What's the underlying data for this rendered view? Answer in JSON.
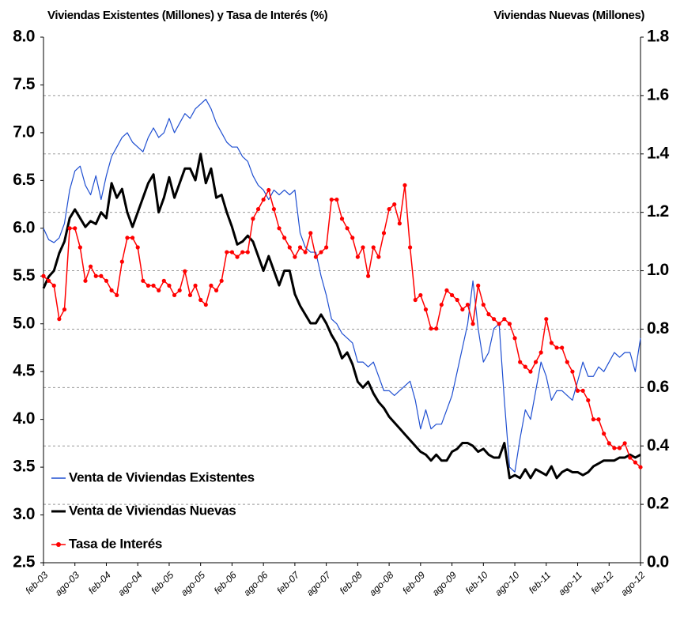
{
  "chart_data": {
    "type": "line",
    "y_label": "Viviendas Existentes (Millones) y Tasa de Interés (%)",
    "y2_label": "Viviendas Nuevas (Millones)",
    "categories": [
      "feb-03",
      null,
      null,
      null,
      null,
      null,
      "ago-03",
      null,
      null,
      null,
      null,
      null,
      "feb-04",
      null,
      null,
      null,
      null,
      null,
      "ago-04",
      null,
      null,
      null,
      null,
      null,
      "feb-05",
      null,
      null,
      null,
      null,
      null,
      "ago-05",
      null,
      null,
      null,
      null,
      null,
      "feb-06",
      null,
      null,
      null,
      null,
      null,
      "ago-06",
      null,
      null,
      null,
      null,
      null,
      "feb-07",
      null,
      null,
      null,
      null,
      null,
      "ago-07",
      null,
      null,
      null,
      null,
      null,
      "feb-08",
      null,
      null,
      null,
      null,
      null,
      "ago-08",
      null,
      null,
      null,
      null,
      null,
      "feb-09",
      null,
      null,
      null,
      null,
      null,
      "ago-09",
      null,
      null,
      null,
      null,
      null,
      "feb-10",
      null,
      null,
      null,
      null,
      null,
      "ago-10",
      null,
      null,
      null,
      null,
      null,
      "feb-11",
      null,
      null,
      null,
      null,
      null,
      "ago-11",
      null,
      null,
      null,
      null,
      null,
      "feb-12",
      null,
      null,
      null,
      null,
      null,
      "ago-12"
    ],
    "ylim": [
      2.5,
      8
    ],
    "yticks": [
      2.5,
      {
        "value": 3,
        "label": "3.0"
      },
      3.5,
      {
        "value": 4,
        "label": "4.0"
      },
      4.5,
      {
        "value": 5,
        "label": "5.0"
      },
      5.5,
      {
        "value": 6,
        "label": "6.0"
      },
      6.5,
      {
        "value": 7,
        "label": "7.0"
      },
      7.5,
      {
        "value": 8,
        "label": "8.0"
      }
    ],
    "y2lim": [
      0,
      1.8
    ],
    "y2ticks": [
      {
        "value": 0,
        "label": "0.0"
      },
      0.2,
      0.4,
      0.6,
      0.8,
      {
        "value": 1,
        "label": "1.0"
      },
      1.2,
      1.4,
      1.6,
      1.8
    ],
    "grid": "y2",
    "series": [
      {
        "name": "Venta de Viviendas Existentes",
        "color": "#1f4fd1",
        "axis": "y",
        "values": [
          6.0,
          5.88,
          5.85,
          5.9,
          6.05,
          6.4,
          6.6,
          6.65,
          6.45,
          6.35,
          6.55,
          6.3,
          6.55,
          6.75,
          6.85,
          6.95,
          7.0,
          6.9,
          6.85,
          6.8,
          6.95,
          7.05,
          6.95,
          7.0,
          7.15,
          7.0,
          7.1,
          7.2,
          7.15,
          7.25,
          7.3,
          7.35,
          7.25,
          7.1,
          7.0,
          6.9,
          6.85,
          6.85,
          6.75,
          6.7,
          6.55,
          6.45,
          6.4,
          6.3,
          6.4,
          6.35,
          6.4,
          6.35,
          6.4,
          5.95,
          5.8,
          5.75,
          5.75,
          5.5,
          5.3,
          5.05,
          5.0,
          4.9,
          4.85,
          4.8,
          4.6,
          4.6,
          4.55,
          4.6,
          4.45,
          4.3,
          4.3,
          4.25,
          4.3,
          4.35,
          4.4,
          4.2,
          3.9,
          4.1,
          3.9,
          3.95,
          3.95,
          4.1,
          4.25,
          4.5,
          4.75,
          5.0,
          5.45,
          4.95,
          4.6,
          4.7,
          4.95,
          5.0,
          4.2,
          3.5,
          3.45,
          3.8,
          4.1,
          4.0,
          4.3,
          4.6,
          4.45,
          4.2,
          4.3,
          4.3,
          4.25,
          4.2,
          4.4,
          4.6,
          4.45,
          4.45,
          4.55,
          4.5,
          4.6,
          4.7,
          4.65,
          4.7,
          4.7,
          4.5,
          4.85
        ]
      },
      {
        "name": "Venta de Viviendas Nuevas",
        "color": "#000000",
        "axis": "y2",
        "values": [
          0.94,
          0.98,
          1.0,
          1.06,
          1.1,
          1.18,
          1.21,
          1.18,
          1.15,
          1.17,
          1.16,
          1.2,
          1.18,
          1.3,
          1.25,
          1.28,
          1.2,
          1.15,
          1.2,
          1.25,
          1.3,
          1.33,
          1.2,
          1.25,
          1.32,
          1.25,
          1.3,
          1.35,
          1.35,
          1.31,
          1.4,
          1.3,
          1.35,
          1.25,
          1.26,
          1.2,
          1.15,
          1.09,
          1.1,
          1.12,
          1.1,
          1.05,
          1.0,
          1.05,
          1.0,
          0.95,
          1.0,
          1.0,
          0.92,
          0.88,
          0.85,
          0.82,
          0.82,
          0.85,
          0.82,
          0.78,
          0.75,
          0.7,
          0.72,
          0.68,
          0.62,
          0.6,
          0.62,
          0.58,
          0.55,
          0.53,
          0.5,
          0.48,
          0.46,
          0.44,
          0.42,
          0.4,
          0.38,
          0.37,
          0.35,
          0.37,
          0.35,
          0.35,
          0.38,
          0.39,
          0.41,
          0.41,
          0.4,
          0.38,
          0.39,
          0.37,
          0.36,
          0.36,
          0.41,
          0.29,
          0.3,
          0.29,
          0.32,
          0.29,
          0.32,
          0.31,
          0.3,
          0.33,
          0.29,
          0.31,
          0.32,
          0.31,
          0.31,
          0.3,
          0.31,
          0.33,
          0.34,
          0.35,
          0.35,
          0.35,
          0.36,
          0.36,
          0.37,
          0.36,
          0.37
        ]
      },
      {
        "name": "Tasa de Interés",
        "color": "#ff0000",
        "axis": "y",
        "marker": "circle",
        "values": [
          5.5,
          5.45,
          5.4,
          5.05,
          5.15,
          6.0,
          6.0,
          5.8,
          5.45,
          5.6,
          5.5,
          5.5,
          5.45,
          5.35,
          5.3,
          5.65,
          5.9,
          5.9,
          5.8,
          5.45,
          5.4,
          5.4,
          5.35,
          5.45,
          5.4,
          5.3,
          5.35,
          5.55,
          5.3,
          5.4,
          5.25,
          5.2,
          5.4,
          5.35,
          5.45,
          5.75,
          5.75,
          5.7,
          5.75,
          5.75,
          6.1,
          6.2,
          6.3,
          6.4,
          6.2,
          6.0,
          5.9,
          5.8,
          5.7,
          5.8,
          5.75,
          5.95,
          5.7,
          5.75,
          5.8,
          6.3,
          6.3,
          6.1,
          6.0,
          5.9,
          5.7,
          5.8,
          5.5,
          5.8,
          5.7,
          5.95,
          6.2,
          6.25,
          6.05,
          6.45,
          5.8,
          5.25,
          5.3,
          5.15,
          4.95,
          4.95,
          5.2,
          5.35,
          5.3,
          5.25,
          5.15,
          5.2,
          5.0,
          5.4,
          5.2,
          5.1,
          5.05,
          5.0,
          5.05,
          5.0,
          4.85,
          4.6,
          4.55,
          4.5,
          4.6,
          4.7,
          5.05,
          4.8,
          4.75,
          4.75,
          4.6,
          4.5,
          4.3,
          4.3,
          4.2,
          4.0,
          4.0,
          3.85,
          3.75,
          3.7,
          3.7,
          3.75,
          3.6,
          3.55,
          3.5
        ]
      }
    ]
  }
}
